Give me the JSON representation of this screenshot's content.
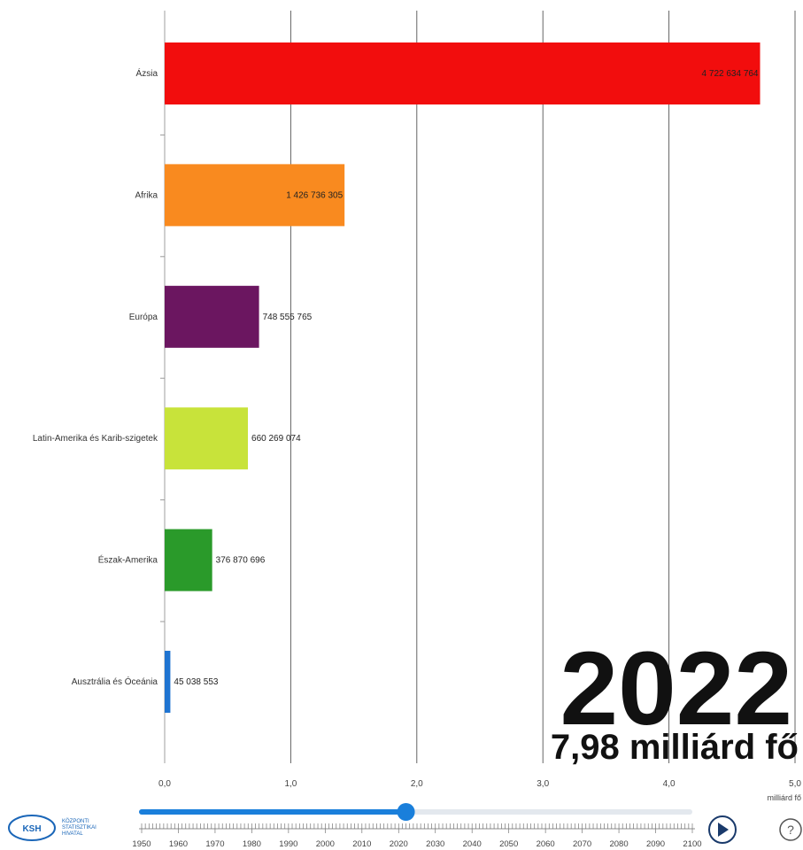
{
  "chart_data": {
    "type": "bar",
    "orientation": "horizontal",
    "categories": [
      "Ázsia",
      "Afrika",
      "Európa",
      "Latin-Amerika és Karib-szigetek",
      "Észak-Amerika",
      "Ausztrália és Óceánia"
    ],
    "values": [
      4722634764,
      1426736305,
      748555765,
      660269074,
      376870696,
      45038553
    ],
    "value_labels": [
      "4 722 634 764",
      "1 426 736 305",
      "748 555 765",
      "660 269 074",
      "376 870 696",
      "45 038 553"
    ],
    "colors": [
      "#f20d0d",
      "#f98a1f",
      "#6b1660",
      "#c8e33a",
      "#2a9a2a",
      "#1f74d1"
    ],
    "xlim": [
      0,
      5
    ],
    "xticks": [
      "0,0",
      "1,0",
      "2,0",
      "3,0",
      "4,0",
      "5,0"
    ],
    "xlabel": "milliárd fő",
    "grid": true,
    "current_year": "2022",
    "total_population": "7,98 milliárd fő"
  },
  "timeline": {
    "years": [
      "1950",
      "1960",
      "1970",
      "1980",
      "1990",
      "2000",
      "2010",
      "2020",
      "2030",
      "2040",
      "2050",
      "2060",
      "2070",
      "2080",
      "2090",
      "2100"
    ],
    "start": 1950,
    "end": 2100,
    "current": 2022,
    "play_icon": "play-icon",
    "help_icon": "help-icon",
    "help_symbol": "?"
  },
  "logo": {
    "abbr": "KSH",
    "line1": "KÖZPONTI",
    "line2": "STATISZTIKAI",
    "line3": "HIVATAL"
  },
  "colors": {
    "accent": "#1a7fdb",
    "grid": "#555555"
  }
}
